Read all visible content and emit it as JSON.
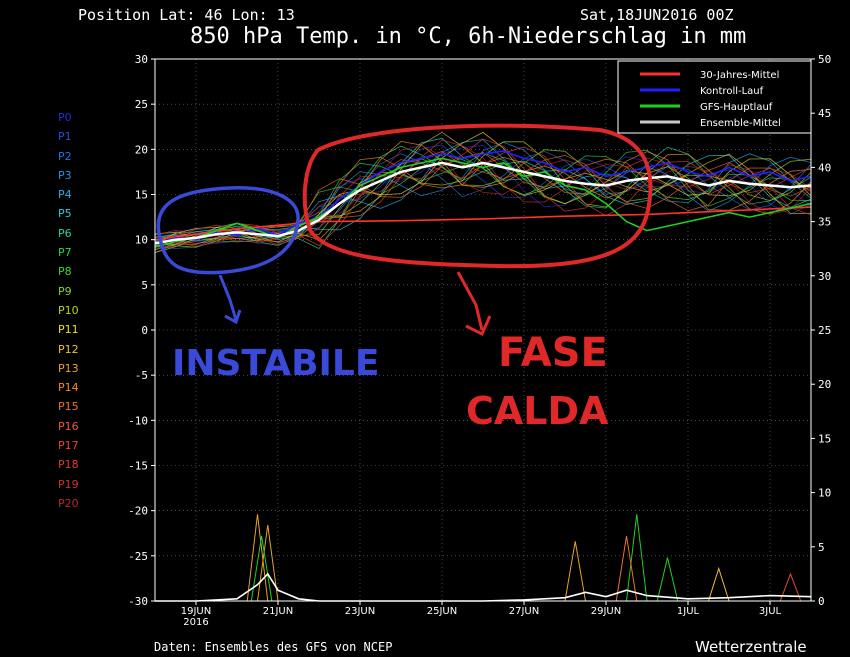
{
  "header": {
    "position_text": "Position  Lat: 46 Lon: 13",
    "date_text": "Sat,18JUN2016 00Z",
    "title": "850 hPa Temp. in °C, 6h-Niederschlag in mm"
  },
  "footer": {
    "credits": "Daten: Ensembles des GFS von NCEP",
    "brand": "Wetterzentrale"
  },
  "members": [
    {
      "label": "P0",
      "color": "#2a2ad8"
    },
    {
      "label": "P1",
      "color": "#2a4ae0"
    },
    {
      "label": "P2",
      "color": "#2a6ee8"
    },
    {
      "label": "P3",
      "color": "#2a90e8"
    },
    {
      "label": "P4",
      "color": "#2ab0e8"
    },
    {
      "label": "P5",
      "color": "#2ad0d8"
    },
    {
      "label": "P6",
      "color": "#2ad890"
    },
    {
      "label": "P7",
      "color": "#2ad850"
    },
    {
      "label": "P8",
      "color": "#40d830"
    },
    {
      "label": "P9",
      "color": "#80d820"
    },
    {
      "label": "P10",
      "color": "#b0d820"
    },
    {
      "label": "P11",
      "color": "#e8e030"
    },
    {
      "label": "P12",
      "color": "#f0c030"
    },
    {
      "label": "P13",
      "color": "#f0a030"
    },
    {
      "label": "P14",
      "color": "#f08830"
    },
    {
      "label": "P15",
      "color": "#f07030"
    },
    {
      "label": "P16",
      "color": "#f05a30"
    },
    {
      "label": "P17",
      "color": "#e84830"
    },
    {
      "label": "P18",
      "color": "#e03a30"
    },
    {
      "label": "P19",
      "color": "#d03030"
    },
    {
      "label": "P20",
      "color": "#b82828"
    }
  ],
  "legend": [
    {
      "label": "30-Jahres-Mittel",
      "color": "#ff3030"
    },
    {
      "label": "Kontroll-Lauf",
      "color": "#2020ff"
    },
    {
      "label": "GFS-Hauptlauf",
      "color": "#20d020"
    },
    {
      "label": "Ensemble-Mittel",
      "color": "#c8c8c8"
    }
  ],
  "annotations": {
    "instabile": "INSTABILE",
    "fase": "FASE",
    "calda": "CALDA"
  },
  "chart_data": {
    "type": "line",
    "x_start": "2016-06-18 00Z",
    "x_ticks": [
      {
        "label": "19JUN",
        "day": 1,
        "sub": "2016"
      },
      {
        "label": "21JUN",
        "day": 3
      },
      {
        "label": "23JUN",
        "day": 5
      },
      {
        "label": "25JUN",
        "day": 7
      },
      {
        "label": "27JUN",
        "day": 9
      },
      {
        "label": "29JUN",
        "day": 11
      },
      {
        "label": "1JUL",
        "day": 13
      },
      {
        "label": "3JUL",
        "day": 15
      }
    ],
    "x_range_days": [
      0,
      16
    ],
    "y_left": {
      "range": [
        -30,
        30
      ],
      "ticks": [
        30,
        25,
        20,
        15,
        10,
        5,
        0,
        -5,
        -10,
        -15,
        -20,
        -25,
        -30
      ],
      "unit": "°C"
    },
    "y_right": {
      "range": [
        0,
        50
      ],
      "ticks": [
        50,
        45,
        40,
        35,
        30,
        25,
        20,
        15,
        10,
        5,
        0
      ],
      "unit": "mm"
    },
    "grid": true,
    "legend_position": "top-right",
    "series": [
      {
        "name": "30-Jahres-Mittel",
        "color": "#ff3030",
        "axis": "left",
        "x": [
          0,
          2,
          4,
          6,
          8,
          10,
          12,
          14,
          16
        ],
        "y": [
          10.0,
          11.2,
          12.0,
          12.1,
          12.3,
          12.6,
          12.8,
          13.2,
          13.6
        ]
      },
      {
        "name": "Kontroll-Lauf",
        "color": "#2020ff",
        "axis": "left",
        "x": [
          0,
          0.5,
          1,
          1.5,
          2,
          2.5,
          3,
          3.5,
          4,
          4.5,
          5,
          5.5,
          6,
          6.5,
          7,
          7.5,
          8,
          8.5,
          9,
          9.5,
          10,
          10.5,
          11,
          11.5,
          12,
          12.5,
          13,
          13.5,
          14,
          14.5,
          15,
          15.5,
          16
        ],
        "y": [
          9.5,
          10.2,
          10.0,
          10.8,
          10.5,
          11.2,
          10.5,
          11.8,
          12.5,
          14.5,
          16.0,
          17.5,
          18.5,
          19.0,
          19.5,
          19.0,
          19.5,
          19.8,
          19.0,
          18.5,
          17.5,
          18.0,
          17.0,
          17.5,
          18.0,
          18.5,
          17.5,
          17.0,
          18.0,
          17.0,
          17.5,
          16.5,
          17.0
        ]
      },
      {
        "name": "GFS-Hauptlauf",
        "color": "#20d020",
        "axis": "left",
        "x": [
          0,
          0.5,
          1,
          1.5,
          2,
          2.5,
          3,
          3.5,
          4,
          4.5,
          5,
          5.5,
          6,
          6.5,
          7,
          7.5,
          8,
          8.5,
          9,
          9.5,
          10,
          10.5,
          11,
          11.5,
          12,
          12.5,
          13,
          13.5,
          14,
          14.5,
          15,
          15.5,
          16
        ],
        "y": [
          9.2,
          9.8,
          10.2,
          11.0,
          11.8,
          11.0,
          10.2,
          11.5,
          12.5,
          14.0,
          16.0,
          17.0,
          18.0,
          18.5,
          19.0,
          18.5,
          18.0,
          18.5,
          17.0,
          17.5,
          16.0,
          15.5,
          14.0,
          12.0,
          11.0,
          11.5,
          12.0,
          12.5,
          13.0,
          12.5,
          13.0,
          13.5,
          14.0
        ]
      },
      {
        "name": "Ensemble-Mittel",
        "color": "#ffffff",
        "axis": "left",
        "x": [
          0,
          0.5,
          1,
          1.5,
          2,
          2.5,
          3,
          3.5,
          4,
          4.5,
          5,
          5.5,
          6,
          6.5,
          7,
          7.5,
          8,
          8.5,
          9,
          9.5,
          10,
          10.5,
          11,
          11.5,
          12,
          12.5,
          13,
          13.5,
          14,
          14.5,
          15,
          15.5,
          16
        ],
        "y": [
          9.6,
          10.0,
          10.2,
          10.6,
          10.8,
          10.6,
          10.4,
          11.0,
          12.2,
          14.0,
          15.5,
          16.5,
          17.5,
          18.0,
          18.5,
          18.0,
          18.5,
          18.0,
          17.5,
          17.0,
          16.5,
          16.2,
          16.0,
          16.5,
          16.8,
          17.0,
          16.5,
          16.0,
          16.5,
          16.2,
          16.0,
          15.8,
          16.0
        ]
      },
      {
        "name": "Niederschlag (Ensemble-Mittel)",
        "color": "#ffffff",
        "axis": "right",
        "x": [
          0,
          1,
          2,
          2.5,
          2.75,
          3,
          3.5,
          4,
          5,
          6,
          7,
          8,
          9,
          10,
          10.5,
          11,
          11.5,
          12,
          13,
          14,
          15,
          16
        ],
        "y": [
          0,
          0,
          0.2,
          1.5,
          2.5,
          1.0,
          0.2,
          0,
          0,
          0,
          0,
          0,
          0.1,
          0.3,
          0.8,
          0.4,
          1.0,
          0.5,
          0.2,
          0.3,
          0.5,
          0.4
        ]
      }
    ],
    "precip_spikes": [
      {
        "day": 2.5,
        "mm": 8.0,
        "color": "#e8a030"
      },
      {
        "day": 2.75,
        "mm": 7.0,
        "color": "#e8a030"
      },
      {
        "day": 2.6,
        "mm": 6.0,
        "color": "#20d020"
      },
      {
        "day": 10.25,
        "mm": 5.5,
        "color": "#e8a030"
      },
      {
        "day": 11.75,
        "mm": 8.0,
        "color": "#20d020"
      },
      {
        "day": 11.5,
        "mm": 6.0,
        "color": "#f07030"
      },
      {
        "day": 12.5,
        "mm": 4.0,
        "color": "#20d020"
      },
      {
        "day": 13.75,
        "mm": 3.0,
        "color": "#f0c030"
      },
      {
        "day": 15.5,
        "mm": 2.5,
        "color": "#e84830"
      }
    ]
  }
}
